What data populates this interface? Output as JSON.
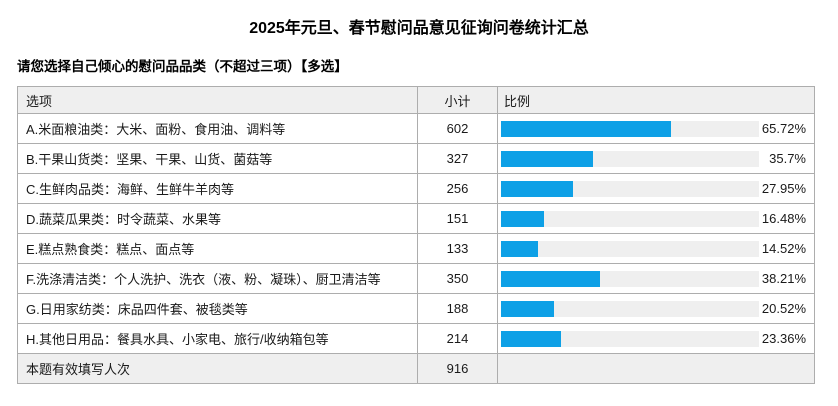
{
  "page": {
    "title": "2025年元旦、春节慰问品意见征询问卷统计汇总",
    "question": "请您选择自己倾心的慰问品品类（不超过三项）【多选】"
  },
  "table": {
    "headers": {
      "option": "选项",
      "subtotal": "小计",
      "ratio": "比例"
    },
    "rows": [
      {
        "option": "A.米面粮油类：大米、面粉、食用油、调料等",
        "subtotal": "602",
        "percent": "65.72%",
        "percent_value": 65.72
      },
      {
        "option": "B.干果山货类：坚果、干果、山货、菌菇等",
        "subtotal": "327",
        "percent": "35.7%",
        "percent_value": 35.7
      },
      {
        "option": "C.生鲜肉品类：海鲜、生鲜牛羊肉等",
        "subtotal": "256",
        "percent": "27.95%",
        "percent_value": 27.95
      },
      {
        "option": "D.蔬菜瓜果类：时令蔬菜、水果等",
        "subtotal": "151",
        "percent": "16.48%",
        "percent_value": 16.48
      },
      {
        "option": "E.糕点熟食类：糕点、面点等",
        "subtotal": "133",
        "percent": "14.52%",
        "percent_value": 14.52
      },
      {
        "option": "F.洗涤清洁类：个人洗护、洗衣（液、粉、凝珠）、厨卫清洁等",
        "subtotal": "350",
        "percent": "38.21%",
        "percent_value": 38.21
      },
      {
        "option": "G.日用家纺类：床品四件套、被毯类等",
        "subtotal": "188",
        "percent": "20.52%",
        "percent_value": 20.52
      },
      {
        "option": "H.其他日用品：餐具水具、小家电、旅行/收纳箱包等",
        "subtotal": "214",
        "percent": "23.36%",
        "percent_value": 23.36
      }
    ],
    "footer": {
      "label": "本题有效填写人次",
      "subtotal": "916",
      "ratio": ""
    }
  },
  "colors": {
    "bar": "#0ea0e6",
    "track": "#efefef",
    "header_bg": "#efefef",
    "border": "#adadad"
  },
  "chart_data": {
    "type": "bar",
    "orientation": "horizontal",
    "title": "2025年元旦、春节慰问品意见征询问卷统计汇总",
    "subtitle": "请您选择自己倾心的慰问品品类（不超过三项）【多选】",
    "categories": [
      "A.米面粮油类：大米、面粉、食用油、调料等",
      "B.干果山货类：坚果、干果、山货、菌菇等",
      "C.生鲜肉品类：海鲜、生鲜牛羊肉等",
      "D.蔬菜瓜果类：时令蔬菜、水果等",
      "E.糕点熟食类：糕点、面点等",
      "F.洗涤清洁类：个人洗护、洗衣（液、粉、凝珠）、厨卫清洁等",
      "G.日用家纺类：床品四件套、被毯类等",
      "H.其他日用品：餐具水具、小家电、旅行/收纳箱包等"
    ],
    "series": [
      {
        "name": "小计",
        "values": [
          602,
          327,
          256,
          151,
          133,
          350,
          188,
          214
        ]
      },
      {
        "name": "比例(%)",
        "values": [
          65.72,
          35.7,
          27.95,
          16.48,
          14.52,
          38.21,
          20.52,
          23.36
        ]
      }
    ],
    "footer_label": "本题有效填写人次",
    "valid_responses": 916,
    "xlim": [
      0,
      100
    ],
    "grid": false,
    "legend_position": "none"
  }
}
